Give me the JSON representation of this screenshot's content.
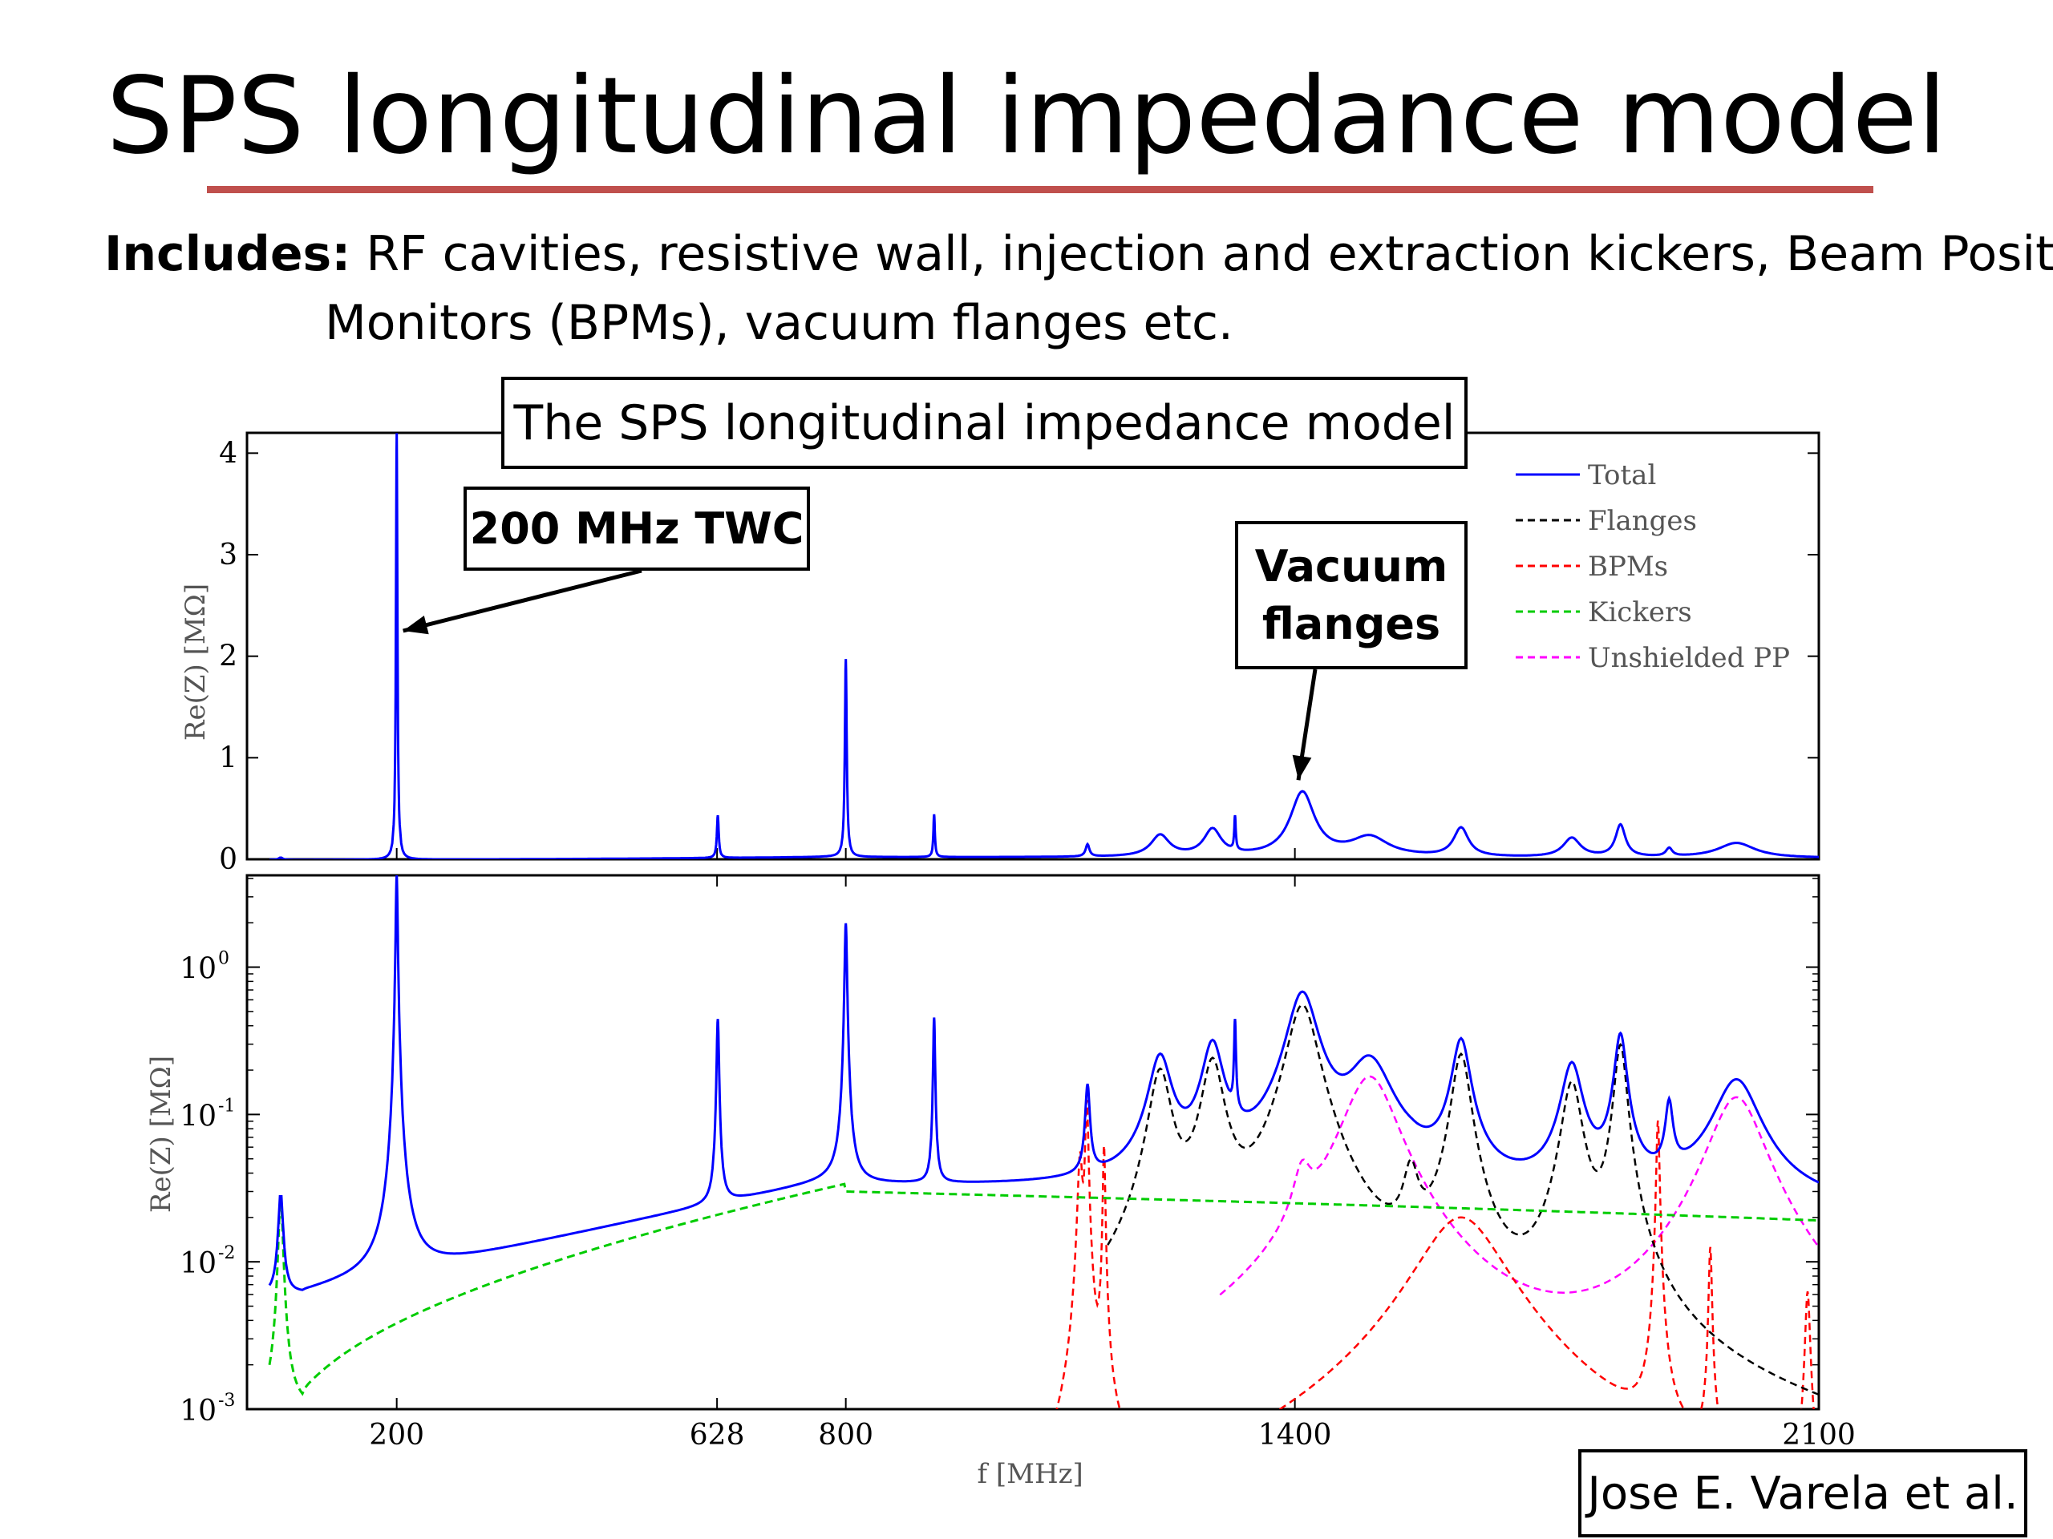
{
  "slide": {
    "title": "SPS longitudinal impedance model",
    "includes_label": "Includes:",
    "includes_line1": " RF cavities, resistive wall, injection and extraction kickers, Beam Position",
    "includes_line2": "Monitors (BPMs), vacuum flanges etc.",
    "credit": "Jose E. Varela et al.",
    "accent_color": "#c0504d"
  },
  "chart_data": [
    {
      "type": "line",
      "title": "The SPS longitudinal impedance model",
      "panel": "top",
      "xlabel": "",
      "ylabel": "Re(Z) [MΩ]",
      "xlim": [
        0,
        2100
      ],
      "ylim": [
        0,
        4.2
      ],
      "yticks": [
        "0",
        "1",
        "2",
        "3",
        "4"
      ],
      "xticks": [],
      "legend_position": "top-right",
      "legend": [
        {
          "name": "Total",
          "color": "#0000ff",
          "style": "solid"
        },
        {
          "name": "Flanges",
          "color": "#000000",
          "style": "dashed"
        },
        {
          "name": "BPMs",
          "color": "#ff0000",
          "style": "dashed"
        },
        {
          "name": "Kickers",
          "color": "#00cc00",
          "style": "dashed"
        },
        {
          "name": "Unshielded PP",
          "color": "#ff00ff",
          "style": "dashed"
        }
      ],
      "series": [
        {
          "name": "Total",
          "color": "#0000ff",
          "peaks": [
            {
              "f": 200,
              "z": 4.2,
              "w": 1.2
            },
            {
              "f": 629,
              "z": 0.42,
              "w": 1.5
            },
            {
              "f": 800,
              "z": 1.95,
              "w": 1.5
            },
            {
              "f": 918,
              "z": 0.42,
              "w": 1.2
            },
            {
              "f": 1123,
              "z": 0.12,
              "w": 3
            },
            {
              "f": 1220,
              "z": 0.2,
              "w": 15
            },
            {
              "f": 1290,
              "z": 0.25,
              "w": 14
            },
            {
              "f": 1320,
              "z": 0.33,
              "w": 1.2
            },
            {
              "f": 1410,
              "z": 0.6,
              "w": 20
            },
            {
              "f": 1500,
              "z": 0.18,
              "w": 30
            },
            {
              "f": 1622,
              "z": 0.27,
              "w": 12
            },
            {
              "f": 1770,
              "z": 0.18,
              "w": 14
            },
            {
              "f": 1835,
              "z": 0.3,
              "w": 8
            },
            {
              "f": 1900,
              "z": 0.08,
              "w": 5
            },
            {
              "f": 1990,
              "z": 0.14,
              "w": 30
            }
          ]
        }
      ],
      "annotations": [
        {
          "text": "200 MHz TWC",
          "target_f": 200,
          "target_z": 2.25
        },
        {
          "text": "Vacuum flanges",
          "target_f": 1410,
          "target_z": 0.78
        }
      ]
    },
    {
      "type": "line",
      "panel": "bottom",
      "xlabel": "f [MHz]",
      "ylabel": "Re(Z) [MΩ]",
      "xlim": [
        0,
        2100
      ],
      "ylim": [
        0.001,
        4.2
      ],
      "yscale": "log",
      "xticks": [
        "200",
        "628",
        "800",
        "1400",
        "2100"
      ],
      "xtick_values": [
        200,
        628,
        800,
        1400,
        2100
      ],
      "yticks": [
        "10",
        "10",
        "10",
        "10"
      ],
      "ytick_exponents": [
        "-3",
        "-2",
        "-1",
        "0"
      ],
      "ytick_values": [
        0.001,
        0.01,
        0.1,
        1
      ],
      "series": [
        {
          "name": "Total",
          "color": "#0000ff",
          "style": "solid"
        },
        {
          "name": "Flanges",
          "color": "#000000",
          "style": "dashed",
          "peaks": [
            {
              "f": 1220,
              "z": 0.19,
              "w": 14
            },
            {
              "f": 1290,
              "z": 0.22,
              "w": 14
            },
            {
              "f": 1410,
              "z": 0.55,
              "w": 20
            },
            {
              "f": 1555,
              "z": 0.03,
              "w": 10
            },
            {
              "f": 1622,
              "z": 0.25,
              "w": 12
            },
            {
              "f": 1770,
              "z": 0.16,
              "w": 13
            },
            {
              "f": 1835,
              "z": 0.29,
              "w": 8
            }
          ]
        },
        {
          "name": "BPMs",
          "color": "#ff0000",
          "style": "dashed",
          "peaks": [
            {
              "f": 1113,
              "z": 0.05,
              "w": 3
            },
            {
              "f": 1122,
              "z": 0.12,
              "w": 2
            },
            {
              "f": 1145,
              "z": 0.06,
              "w": 1.5
            },
            {
              "f": 1622,
              "z": 0.02,
              "w": 55
            },
            {
              "f": 1885,
              "z": 0.09,
              "w": 2
            },
            {
              "f": 1955,
              "z": 0.012,
              "w": 2
            },
            {
              "f": 2085,
              "z": 0.006,
              "w": 3
            }
          ]
        },
        {
          "name": "Kickers",
          "color": "#00cc00",
          "style": "dashed"
        },
        {
          "name": "Unshielded PP",
          "color": "#ff00ff",
          "style": "dashed",
          "peaks": [
            {
              "f": 1410,
              "z": 0.025,
              "w": 12
            },
            {
              "f": 1500,
              "z": 0.18,
              "w": 35
            },
            {
              "f": 1990,
              "z": 0.13,
              "w": 35
            }
          ]
        }
      ]
    }
  ]
}
